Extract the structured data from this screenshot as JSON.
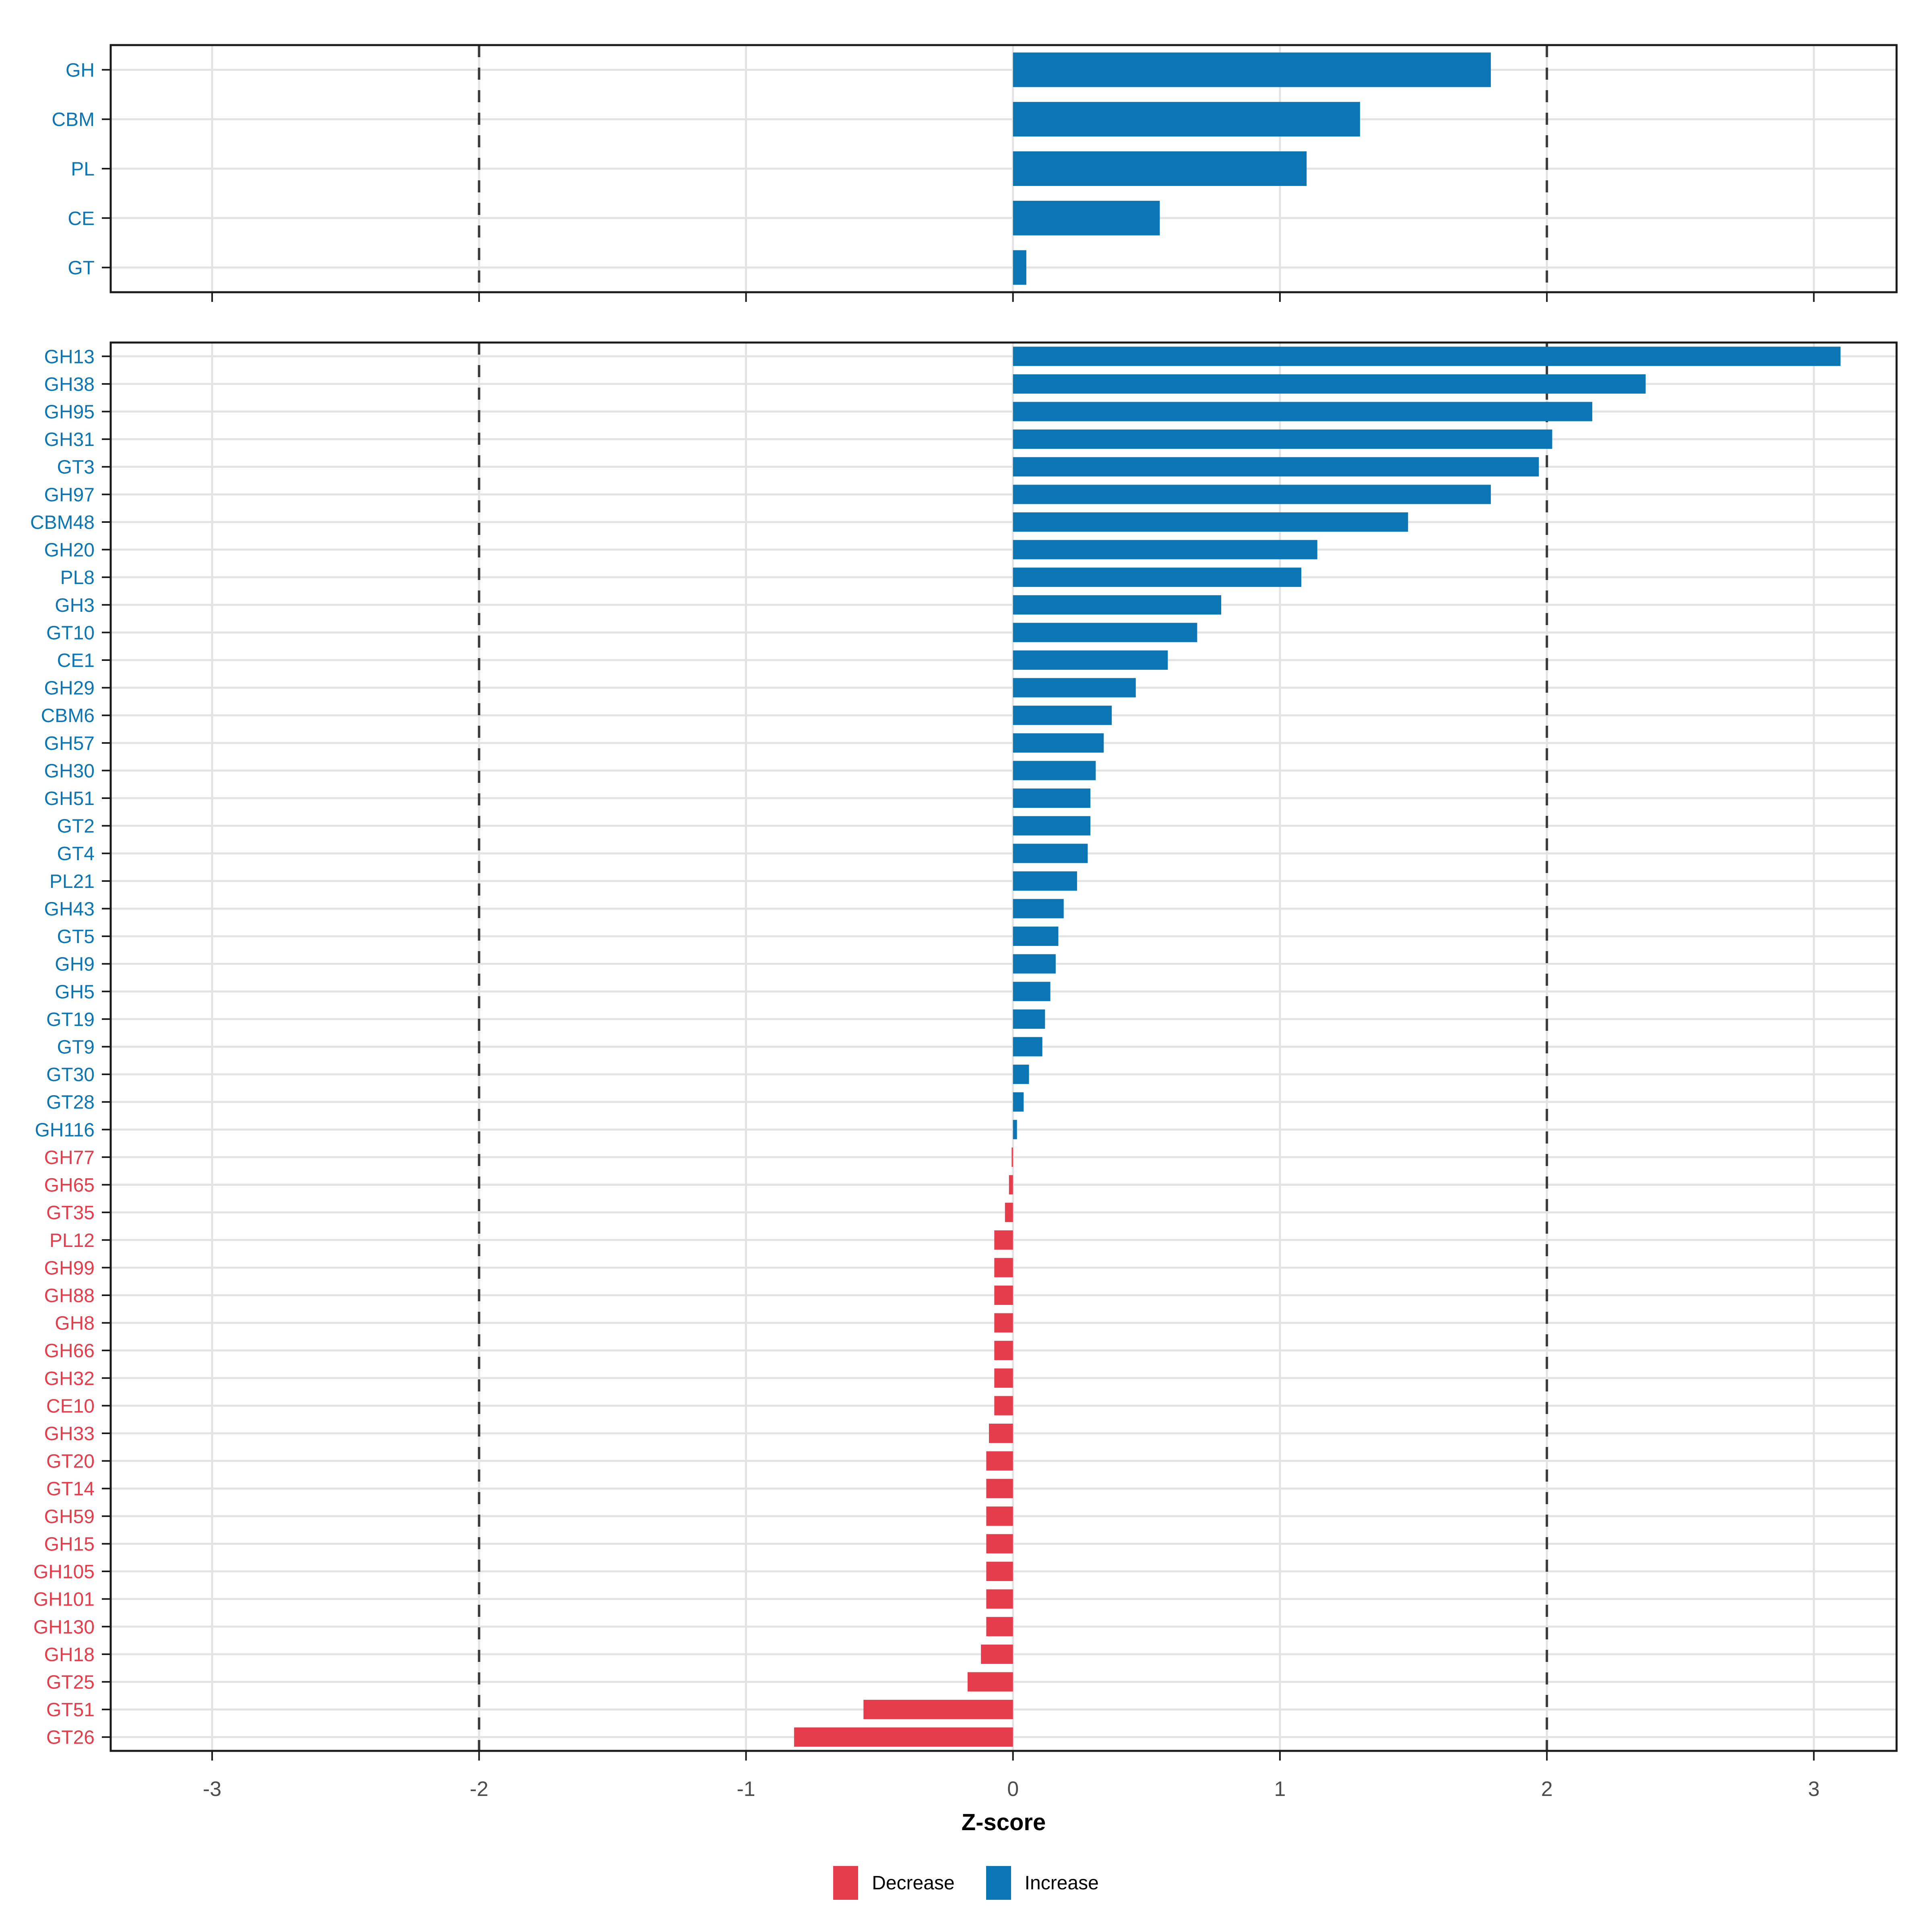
{
  "axis": {
    "label": "Z-score",
    "ticks": [
      -3,
      -2,
      -1,
      0,
      1,
      2,
      3
    ],
    "xlim": [
      -3.38,
      3.31
    ],
    "thresholds": [
      -2,
      2
    ],
    "grid": true
  },
  "legend": {
    "items": [
      {
        "key": "decrease",
        "label": "Decrease",
        "color": "#E63D4C"
      },
      {
        "key": "increase",
        "label": "Increase",
        "color": "#0C76B4"
      }
    ]
  },
  "colors": {
    "increase": "#0C76B4",
    "decrease": "#E63D4C",
    "grid": "#E3E3E3",
    "threshold_dash": "#3C3C3C",
    "tick_text": "#4D4D4D",
    "panel_border": "#1A1A1A"
  },
  "chart_data": [
    {
      "type": "bar",
      "orientation": "horizontal",
      "panel": "cazyme-classes",
      "xlabel": "Z-score",
      "xlim": [
        -3.38,
        3.31
      ],
      "categories": [
        "GH",
        "CBM",
        "PL",
        "CE",
        "GT"
      ],
      "values": [
        1.79,
        1.3,
        1.1,
        0.55,
        0.05
      ],
      "series": [
        {
          "name": "Increase",
          "color": "#0C76B4",
          "rule": "value >= 0"
        },
        {
          "name": "Decrease",
          "color": "#E63D4C",
          "rule": "value < 0"
        }
      ],
      "legend_position": "none",
      "x_tick_labels_visible": false
    },
    {
      "type": "bar",
      "orientation": "horizontal",
      "panel": "cazyme-families",
      "xlabel": "Z-score",
      "xlim": [
        -3.38,
        3.31
      ],
      "categories": [
        "GH13",
        "GH38",
        "GH95",
        "GH31",
        "GT3",
        "GH97",
        "CBM48",
        "GH20",
        "PL8",
        "GH3",
        "GT10",
        "CE1",
        "GH29",
        "CBM6",
        "GH57",
        "GH30",
        "GH51",
        "GT2",
        "GT4",
        "PL21",
        "GH43",
        "GT5",
        "GH9",
        "GH5",
        "GT19",
        "GT9",
        "GT30",
        "GT28",
        "GH116",
        "GH77",
        "GH65",
        "GT35",
        "PL12",
        "GH99",
        "GH88",
        "GH8",
        "GH66",
        "GH32",
        "CE10",
        "GH33",
        "GT20",
        "GT14",
        "GH59",
        "GH15",
        "GH105",
        "GH101",
        "GH130",
        "GH18",
        "GT25",
        "GT51",
        "GT26"
      ],
      "values": [
        3.1,
        2.37,
        2.17,
        2.02,
        1.97,
        1.79,
        1.48,
        1.14,
        1.08,
        0.78,
        0.69,
        0.58,
        0.46,
        0.37,
        0.34,
        0.31,
        0.29,
        0.29,
        0.28,
        0.24,
        0.19,
        0.17,
        0.16,
        0.14,
        0.12,
        0.11,
        0.06,
        0.04,
        0.015,
        -0.005,
        -0.015,
        -0.03,
        -0.07,
        -0.07,
        -0.07,
        -0.07,
        -0.07,
        -0.07,
        -0.07,
        -0.09,
        -0.1,
        -0.1,
        -0.1,
        -0.1,
        -0.1,
        -0.1,
        -0.1,
        -0.12,
        -0.17,
        -0.56,
        -0.82
      ],
      "series": [
        {
          "name": "Increase",
          "color": "#0C76B4",
          "rule": "value >= 0"
        },
        {
          "name": "Decrease",
          "color": "#E63D4C",
          "rule": "value < 0"
        }
      ],
      "legend_position": "bottom",
      "x_tick_labels_visible": true
    }
  ]
}
